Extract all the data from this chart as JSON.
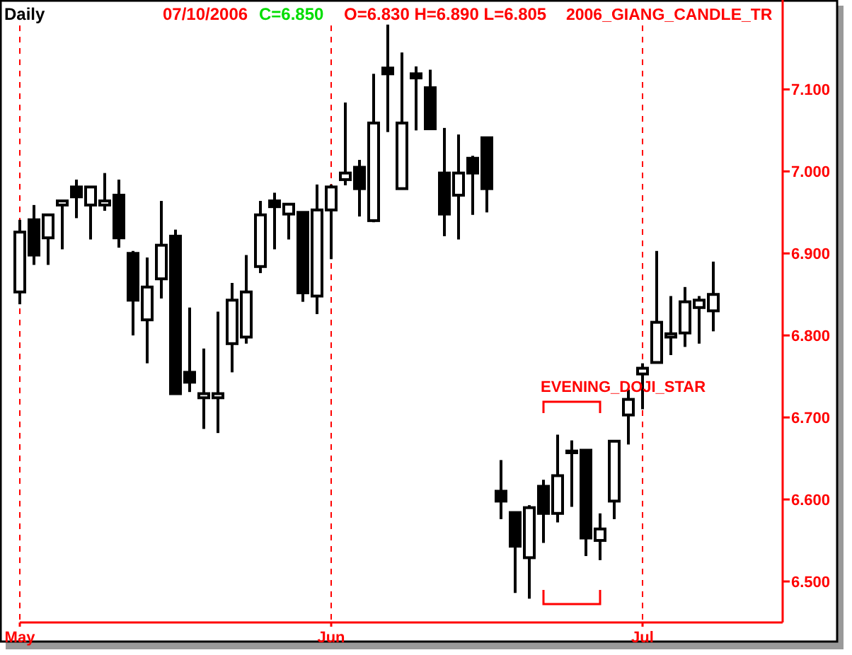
{
  "chart_data": {
    "type": "candlestick",
    "title": "Daily",
    "annotations": [
      "07/10/2006",
      "C=6.850",
      "O=6.830  H=6.890  L=6.805",
      "2006_GIANG_CANDLE_TR",
      "EVENING_DOJI_STAR"
    ],
    "categories": [
      "May",
      null,
      null,
      null,
      null,
      null,
      null,
      null,
      null,
      null,
      null,
      null,
      null,
      null,
      null,
      null,
      null,
      null,
      null,
      null,
      null,
      null,
      "Jun",
      null,
      null,
      null,
      null,
      null,
      null,
      null,
      null,
      null,
      null,
      null,
      null,
      null,
      null,
      null,
      null,
      null,
      null,
      null,
      null,
      null,
      "Jul",
      null,
      null,
      null,
      null,
      null
    ],
    "ohlc": [
      [
        6.853,
        6.941,
        6.838,
        6.926
      ],
      [
        6.941,
        6.959,
        6.886,
        6.898
      ],
      [
        6.919,
        6.947,
        6.886,
        6.947
      ],
      [
        6.959,
        6.964,
        6.905,
        6.964
      ],
      [
        6.981,
        6.99,
        6.943,
        6.969
      ],
      [
        6.959,
        6.981,
        6.917,
        6.981
      ],
      [
        6.959,
        6.998,
        6.952,
        6.964
      ],
      [
        6.971,
        6.99,
        6.907,
        6.919
      ],
      [
        6.9,
        6.903,
        6.8,
        6.843
      ],
      [
        6.819,
        6.895,
        6.766,
        6.859
      ],
      [
        6.869,
        6.964,
        6.845,
        6.91
      ],
      [
        6.921,
        6.929,
        6.728,
        6.729
      ],
      [
        6.755,
        6.834,
        6.731,
        6.743
      ],
      [
        6.724,
        6.784,
        6.686,
        6.729
      ],
      [
        6.724,
        6.829,
        6.681,
        6.729
      ],
      [
        6.79,
        6.864,
        6.755,
        6.843
      ],
      [
        6.798,
        6.898,
        6.79,
        6.853
      ],
      [
        6.884,
        6.964,
        6.876,
        6.947
      ],
      [
        6.964,
        6.974,
        6.905,
        6.957
      ],
      [
        6.948,
        6.96,
        6.917,
        6.96
      ],
      [
        6.95,
        6.95,
        6.841,
        6.852
      ],
      [
        6.848,
        6.984,
        6.826,
        6.953
      ],
      [
        6.953,
        6.984,
        6.893,
        6.981
      ],
      [
        6.99,
        7.084,
        6.983,
        6.998
      ],
      [
        7.005,
        7.014,
        6.945,
        6.979
      ],
      [
        6.94,
        7.119,
        6.938,
        7.059
      ],
      [
        7.126,
        7.179,
        7.048,
        7.119
      ],
      [
        6.979,
        7.145,
        6.979,
        7.059
      ],
      [
        7.119,
        7.128,
        7.05,
        7.114
      ],
      [
        7.102,
        7.124,
        7.052,
        7.052
      ],
      [
        6.998,
        7.053,
        6.921,
        6.948
      ],
      [
        6.971,
        7.045,
        6.917,
        6.998
      ],
      [
        7.016,
        7.019,
        6.947,
        6.998
      ],
      [
        7.041,
        7.041,
        6.95,
        6.979
      ],
      [
        6.61,
        6.648,
        6.576,
        6.598
      ],
      [
        6.584,
        6.584,
        6.486,
        6.543
      ],
      [
        6.529,
        6.593,
        6.479,
        6.59
      ],
      [
        6.616,
        6.624,
        6.547,
        6.583
      ],
      [
        6.583,
        6.679,
        6.572,
        6.629
      ],
      [
        6.659,
        6.672,
        6.591,
        6.657
      ],
      [
        6.66,
        6.66,
        6.531,
        6.553
      ],
      [
        6.55,
        6.583,
        6.526,
        6.564
      ],
      [
        6.598,
        6.671,
        6.576,
        6.671
      ],
      [
        6.703,
        6.734,
        6.667,
        6.722
      ],
      [
        6.753,
        6.766,
        6.71,
        6.76
      ],
      [
        6.767,
        6.903,
        6.766,
        6.816
      ],
      [
        6.798,
        6.848,
        6.776,
        6.802
      ],
      [
        6.803,
        6.859,
        6.786,
        6.841
      ],
      [
        6.834,
        6.848,
        6.79,
        6.843
      ],
      [
        6.83,
        6.89,
        6.805,
        6.85
      ]
    ],
    "color": "#000000",
    "ylim": [
      6.45,
      7.209
    ],
    "yticks": [
      {
        "value": 6.5,
        "label": "6.500"
      },
      {
        "value": 6.6,
        "label": "6.600"
      },
      {
        "value": 6.7,
        "label": "6.700"
      },
      {
        "value": 6.8,
        "label": "6.800"
      },
      {
        "value": 6.9,
        "label": "6.900"
      },
      {
        "value": 7.0,
        "label": "7.000"
      },
      {
        "value": 7.1,
        "label": "7.100"
      }
    ],
    "ref_lines": [
      {
        "axis": "x",
        "value": "May",
        "color": "#ff0000",
        "line_style": "dashed"
      },
      {
        "axis": "x",
        "value": "Jun",
        "color": "#ff0000",
        "line_style": "dashed"
      },
      {
        "axis": "x",
        "value": "Jul",
        "color": "#ff0000",
        "line_style": "dashed"
      }
    ],
    "grid": false
  }
}
